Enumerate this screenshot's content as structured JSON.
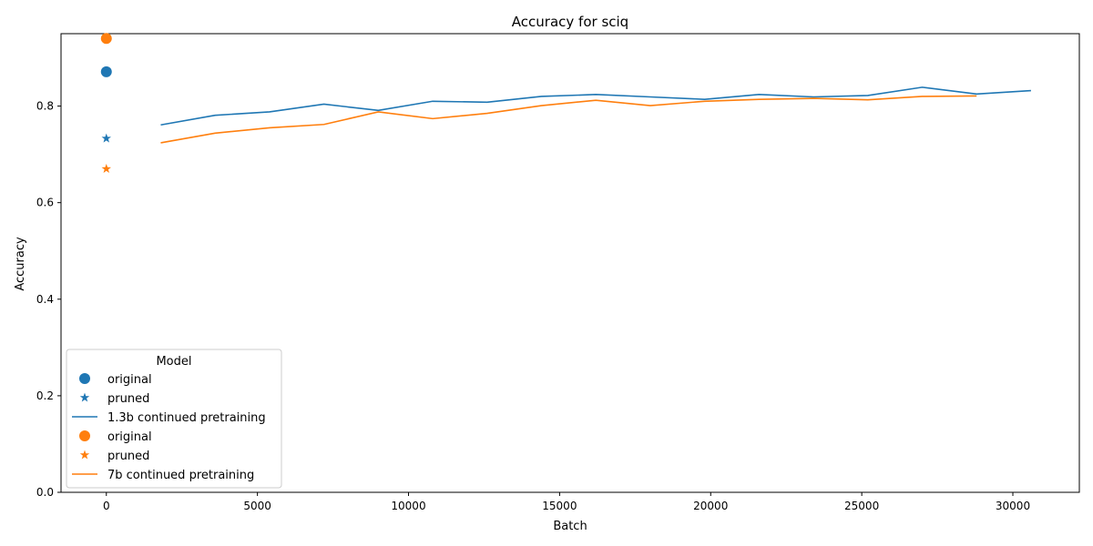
{
  "chart_data": {
    "type": "line",
    "title": "Accuracy for sciq",
    "xlabel": "Batch",
    "ylabel": "Accuracy",
    "xlim": [
      -1500,
      32200
    ],
    "ylim": [
      0,
      0.95
    ],
    "x_ticks": [
      0,
      5000,
      10000,
      15000,
      20000,
      25000,
      30000
    ],
    "y_ticks": [
      0.0,
      0.2,
      0.4,
      0.6,
      0.8
    ],
    "x_tick_labels": [
      "0",
      "5000",
      "10000",
      "15000",
      "20000",
      "25000",
      "30000"
    ],
    "y_tick_labels": [
      "0.0",
      "0.2",
      "0.4",
      "0.6",
      "0.8"
    ],
    "grid": false,
    "legend": {
      "title": "Model",
      "placement": "lower-left",
      "entries": [
        {
          "label": "original",
          "marker": "circle",
          "color": "#1f77b4"
        },
        {
          "label": "pruned",
          "marker": "star",
          "color": "#1f77b4"
        },
        {
          "label": "1.3b continued pretraining",
          "marker": "line",
          "color": "#1f77b4"
        },
        {
          "label": "original",
          "marker": "circle",
          "color": "#ff7f0e"
        },
        {
          "label": "pruned",
          "marker": "star",
          "color": "#ff7f0e"
        },
        {
          "label": "7b continued pretraining",
          "marker": "line",
          "color": "#ff7f0e"
        }
      ]
    },
    "points": [
      {
        "name": "original",
        "marker": "circle",
        "color": "#1f77b4",
        "x": 0,
        "y": 0.871
      },
      {
        "name": "pruned",
        "marker": "star",
        "color": "#1f77b4",
        "x": 0,
        "y": 0.733
      },
      {
        "name": "original",
        "marker": "circle",
        "color": "#ff7f0e",
        "x": 0,
        "y": 0.94
      },
      {
        "name": "pruned",
        "marker": "star",
        "color": "#ff7f0e",
        "x": 0,
        "y": 0.67
      }
    ],
    "series": [
      {
        "name": "1.3b continued pretraining",
        "color": "#1f77b4",
        "x": [
          1800,
          3600,
          5400,
          7200,
          9000,
          10800,
          12600,
          14400,
          16200,
          18000,
          19800,
          21600,
          23400,
          25200,
          27000,
          28800,
          30600
        ],
        "y": [
          0.761,
          0.781,
          0.788,
          0.804,
          0.791,
          0.81,
          0.808,
          0.82,
          0.824,
          0.819,
          0.814,
          0.824,
          0.819,
          0.822,
          0.839,
          0.825,
          0.832
        ]
      },
      {
        "name": "7b continued pretraining",
        "color": "#ff7f0e",
        "x": [
          1800,
          3600,
          5400,
          7200,
          9000,
          10800,
          12600,
          14400,
          16200,
          18000,
          19800,
          21600,
          23400,
          25200,
          27000,
          28800
        ],
        "y": [
          0.724,
          0.744,
          0.755,
          0.762,
          0.788,
          0.774,
          0.785,
          0.801,
          0.812,
          0.801,
          0.81,
          0.814,
          0.816,
          0.813,
          0.82,
          0.821
        ]
      }
    ]
  }
}
